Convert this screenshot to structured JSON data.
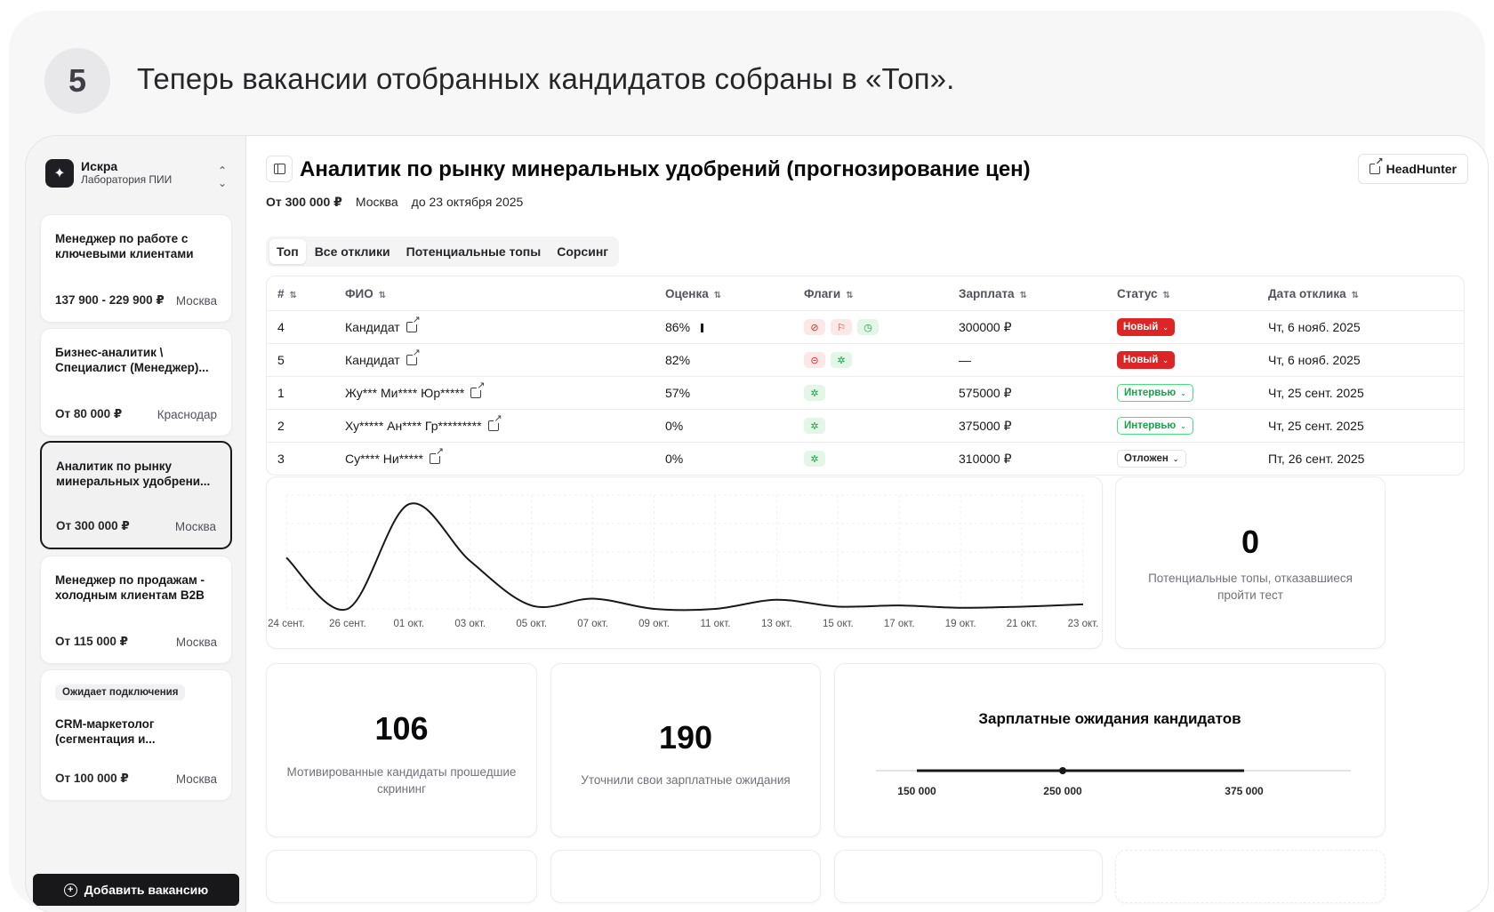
{
  "step": {
    "number": "5",
    "text": "Теперь вакансии отобранных кандидатов собраны в «Топ»."
  },
  "org": {
    "name": "Искра",
    "subtitle": "Лаборатория ПИИ"
  },
  "sidebar": {
    "jobs": [
      {
        "title": "Менеджер по работе с ключевыми клиентами",
        "salary": "137 900 - 229 900 ₽",
        "city": "Москва",
        "badge": ""
      },
      {
        "title": "Бизнес-аналитик \\ Специалист (Менеджер)...",
        "salary": "От 80 000 ₽",
        "city": "Краснодар",
        "badge": ""
      },
      {
        "title": "Аналитик по рынку минеральных удобрени...",
        "salary": "От 300 000 ₽",
        "city": "Москва",
        "badge": ""
      },
      {
        "title": "Менеджер по продажам - холодным клиентам B2B",
        "salary": "От 115 000 ₽",
        "city": "Москва",
        "badge": ""
      },
      {
        "title": "CRM-маркетолог (сегментация и...",
        "salary": "От 100 000 ₽",
        "city": "Москва",
        "badge": "Ожидает подключения"
      }
    ],
    "add_button": "Добавить вакансию"
  },
  "header": {
    "title": "Аналитик по рынку минеральных удобрений (прогнозирование цен)",
    "source_button": "HeadHunter",
    "salary": "От 300 000 ₽",
    "city": "Москва",
    "deadline": "до 23 октября 2025"
  },
  "tabs": [
    "Топ",
    "Все отклики",
    "Потенциальные топы",
    "Сорсинг"
  ],
  "table": {
    "columns": [
      "#",
      "ФИО",
      "Оценка",
      "Флаги",
      "Зарплата",
      "Статус",
      "Дата отклика"
    ],
    "rows": [
      {
        "num": "4",
        "name": "Кандидат",
        "score": "86%",
        "salary": "300000 ₽",
        "status": "Новый",
        "date": "Чт, 6 нояб. 2025"
      },
      {
        "num": "5",
        "name": "Кандидат",
        "score": "82%",
        "salary": "—",
        "status": "Новый",
        "date": "Чт, 6 нояб. 2025"
      },
      {
        "num": "1",
        "name": "Жу*** Ми**** Юр*****",
        "score": "57%",
        "salary": "575000 ₽",
        "status": "Интервью",
        "date": "Чт, 25 сент. 2025"
      },
      {
        "num": "2",
        "name": "Ху***** Ан**** Гр*********",
        "score": "0%",
        "salary": "375000 ₽",
        "status": "Интервью",
        "date": "Чт, 25 сент. 2025"
      },
      {
        "num": "3",
        "name": "Су**** Ни*****",
        "score": "0%",
        "salary": "310000 ₽",
        "status": "Отложен",
        "date": "Пт, 26 сент. 2025"
      }
    ]
  },
  "chart_data": {
    "type": "line",
    "title": "",
    "xlabel": "",
    "ylabel": "",
    "x": [
      "24 сент.",
      "26 сент.",
      "01 окт.",
      "03 окт.",
      "05 окт.",
      "07 окт.",
      "09 окт.",
      "11 окт.",
      "13 окт.",
      "15 окт.",
      "17 окт.",
      "19 окт.",
      "21 окт.",
      "23 окт."
    ],
    "values": [
      0.45,
      0.0,
      0.92,
      0.42,
      0.03,
      0.09,
      0.0,
      0.0,
      0.08,
      0.02,
      0.03,
      0.01,
      0.02,
      0.04
    ],
    "grid": true
  },
  "stats": {
    "refused_top": {
      "value": "0",
      "label": "Потенциальные топы, отказавшиеся пройти тест"
    },
    "motivated": {
      "value": "106",
      "label": "Мотивированные кандидаты прошедшие скрининг"
    },
    "clarified": {
      "value": "190",
      "label": "Уточнили свои зарплатные ожидания"
    }
  },
  "salary_range": {
    "title": "Зарплатные ожидания кандидатов",
    "min": "150 000",
    "median": "250 000",
    "max": "375 000"
  }
}
